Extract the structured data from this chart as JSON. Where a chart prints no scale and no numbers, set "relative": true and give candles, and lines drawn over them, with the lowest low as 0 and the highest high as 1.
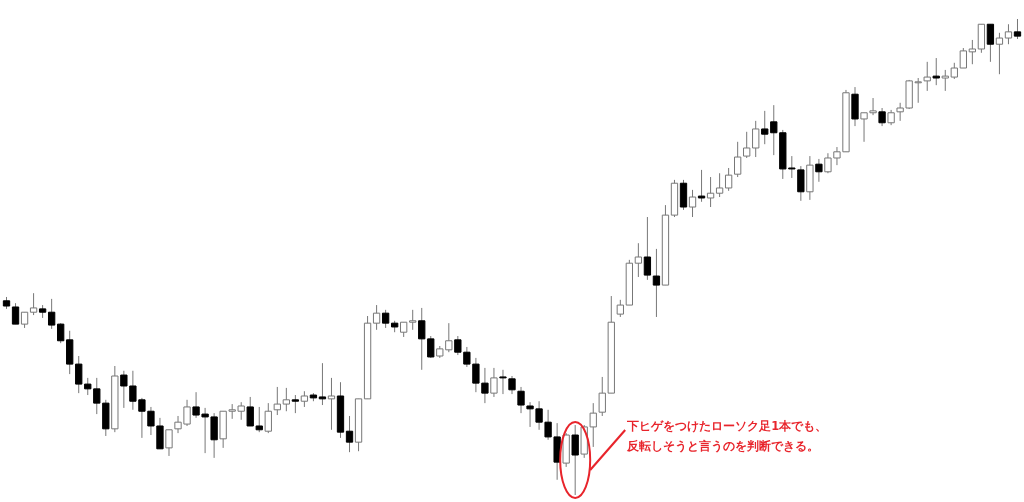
{
  "chart_data": {
    "type": "candlestick",
    "relative": true,
    "categories": [
      null,
      null,
      null,
      null,
      null,
      null,
      null,
      null,
      null,
      null,
      null,
      null,
      null,
      null,
      null,
      null,
      null,
      null,
      null,
      null,
      null,
      null,
      null,
      null,
      null,
      null,
      null,
      null,
      null,
      null,
      null,
      null,
      null,
      null,
      null,
      null,
      null,
      null,
      null,
      null,
      null,
      null,
      null,
      null,
      null,
      null,
      null,
      null,
      null,
      null,
      null,
      null,
      null,
      null,
      null,
      null,
      null,
      null,
      null,
      null,
      null,
      null,
      null,
      null,
      null,
      null,
      null,
      null,
      null,
      null,
      null,
      null,
      null,
      null,
      null,
      null,
      null,
      null,
      null,
      null,
      null,
      null,
      null,
      null,
      null,
      null,
      null,
      null,
      null,
      null,
      null,
      null,
      null,
      null,
      null,
      null,
      null,
      null,
      null,
      null,
      null,
      null,
      null,
      null,
      null,
      null,
      null,
      null,
      null,
      null,
      null,
      null,
      null
    ],
    "ohlc": [
      [
        0.408,
        0.416,
        0.391,
        0.397
      ],
      [
        0.395,
        0.403,
        0.359,
        0.359
      ],
      [
        0.359,
        0.384,
        0.351,
        0.384
      ],
      [
        0.384,
        0.424,
        0.378,
        0.393
      ],
      [
        0.391,
        0.399,
        0.372,
        0.384
      ],
      [
        0.384,
        0.412,
        0.349,
        0.357
      ],
      [
        0.359,
        0.361,
        0.319,
        0.324
      ],
      [
        0.326,
        0.345,
        0.254,
        0.275
      ],
      [
        0.275,
        0.292,
        0.214,
        0.233
      ],
      [
        0.233,
        0.246,
        0.21,
        0.223
      ],
      [
        0.223,
        0.246,
        0.17,
        0.193
      ],
      [
        0.193,
        0.2,
        0.124,
        0.139
      ],
      [
        0.139,
        0.271,
        0.132,
        0.25
      ],
      [
        0.252,
        0.261,
        0.183,
        0.229
      ],
      [
        0.229,
        0.261,
        0.179,
        0.197
      ],
      [
        0.2,
        0.204,
        0.12,
        0.176
      ],
      [
        0.176,
        0.185,
        0.126,
        0.145
      ],
      [
        0.145,
        0.162,
        0.097,
        0.097
      ],
      [
        0.099,
        0.137,
        0.082,
        0.137
      ],
      [
        0.139,
        0.166,
        0.13,
        0.153
      ],
      [
        0.149,
        0.2,
        0.145,
        0.185
      ],
      [
        0.185,
        0.216,
        0.162,
        0.168
      ],
      [
        0.17,
        0.183,
        0.088,
        0.164
      ],
      [
        0.164,
        0.172,
        0.078,
        0.116
      ],
      [
        0.118,
        0.176,
        0.099,
        0.176
      ],
      [
        0.176,
        0.191,
        0.16,
        0.179
      ],
      [
        0.176,
        0.195,
        0.158,
        0.187
      ],
      [
        0.185,
        0.206,
        0.145,
        0.145
      ],
      [
        0.145,
        0.185,
        0.132,
        0.137
      ],
      [
        0.134,
        0.193,
        0.13,
        0.176
      ],
      [
        0.179,
        0.227,
        0.168,
        0.191
      ],
      [
        0.191,
        0.225,
        0.176,
        0.2
      ],
      [
        0.2,
        0.21,
        0.172,
        0.197
      ],
      [
        0.197,
        0.218,
        0.185,
        0.208
      ],
      [
        0.21,
        0.214,
        0.197,
        0.204
      ],
      [
        0.206,
        0.277,
        0.189,
        0.202
      ],
      [
        0.202,
        0.246,
        0.137,
        0.208
      ],
      [
        0.208,
        0.237,
        0.12,
        0.132
      ],
      [
        0.134,
        0.166,
        0.09,
        0.111
      ],
      [
        0.111,
        0.202,
        0.092,
        0.202
      ],
      [
        0.202,
        0.376,
        0.202,
        0.361
      ],
      [
        0.361,
        0.399,
        0.347,
        0.382
      ],
      [
        0.382,
        0.389,
        0.351,
        0.361
      ],
      [
        0.361,
        0.366,
        0.342,
        0.353
      ],
      [
        0.342,
        0.363,
        0.332,
        0.363
      ],
      [
        0.363,
        0.389,
        0.347,
        0.366
      ],
      [
        0.366,
        0.393,
        0.263,
        0.328
      ],
      [
        0.328,
        0.334,
        0.288,
        0.29
      ],
      [
        0.292,
        0.313,
        0.288,
        0.307
      ],
      [
        0.305,
        0.361,
        0.3,
        0.324
      ],
      [
        0.326,
        0.334,
        0.294,
        0.3
      ],
      [
        0.3,
        0.311,
        0.269,
        0.275
      ],
      [
        0.275,
        0.288,
        0.216,
        0.235
      ],
      [
        0.235,
        0.267,
        0.193,
        0.214
      ],
      [
        0.214,
        0.267,
        0.206,
        0.246
      ],
      [
        0.248,
        0.263,
        0.212,
        0.246
      ],
      [
        0.244,
        0.25,
        0.212,
        0.221
      ],
      [
        0.218,
        0.227,
        0.172,
        0.189
      ],
      [
        0.187,
        0.195,
        0.143,
        0.181
      ],
      [
        0.181,
        0.197,
        0.137,
        0.153
      ],
      [
        0.153,
        0.179,
        0.116,
        0.122
      ],
      [
        0.122,
        0.151,
        0.032,
        0.069
      ],
      [
        0.067,
        0.13,
        0.059,
        0.126
      ],
      [
        0.126,
        0.147,
        0,
        0.084
      ],
      [
        0.086,
        0.147,
        0.078,
        0.143
      ],
      [
        0.143,
        0.193,
        0.101,
        0.172
      ],
      [
        0.174,
        0.248,
        0.166,
        0.214
      ],
      [
        0.214,
        0.418,
        0.214,
        0.363
      ],
      [
        0.38,
        0.41,
        0.374,
        0.399
      ],
      [
        0.399,
        0.494,
        0.399,
        0.487
      ],
      [
        0.487,
        0.529,
        0.458,
        0.5
      ],
      [
        0.5,
        0.584,
        0.452,
        0.462
      ],
      [
        0.46,
        0.517,
        0.374,
        0.441
      ],
      [
        0.441,
        0.609,
        0.441,
        0.588
      ],
      [
        0.588,
        0.662,
        0.584,
        0.655
      ],
      [
        0.655,
        0.662,
        0.599,
        0.605
      ],
      [
        0.605,
        0.641,
        0.584,
        0.626
      ],
      [
        0.628,
        0.683,
        0.616,
        0.624
      ],
      [
        0.624,
        0.668,
        0.605,
        0.634
      ],
      [
        0.634,
        0.676,
        0.626,
        0.645
      ],
      [
        0.645,
        0.687,
        0.639,
        0.672
      ],
      [
        0.674,
        0.742,
        0.668,
        0.71
      ],
      [
        0.712,
        0.763,
        0.708,
        0.729
      ],
      [
        0.729,
        0.786,
        0.71,
        0.769
      ],
      [
        0.769,
        0.807,
        0.737,
        0.758
      ],
      [
        0.784,
        0.819,
        0.714,
        0.761
      ],
      [
        0.761,
        0.767,
        0.664,
        0.685
      ],
      [
        0.687,
        0.712,
        0.666,
        0.685
      ],
      [
        0.683,
        0.691,
        0.618,
        0.637
      ],
      [
        0.637,
        0.712,
        0.62,
        0.693
      ],
      [
        0.695,
        0.706,
        0.658,
        0.679
      ],
      [
        0.679,
        0.718,
        0.676,
        0.708
      ],
      [
        0.708,
        0.731,
        0.693,
        0.721
      ],
      [
        0.721,
        0.851,
        0.721,
        0.845
      ],
      [
        0.842,
        0.857,
        0.775,
        0.79
      ],
      [
        0.79,
        0.803,
        0.742,
        0.803
      ],
      [
        0.803,
        0.834,
        0.798,
        0.807
      ],
      [
        0.805,
        0.813,
        0.775,
        0.782
      ],
      [
        0.782,
        0.809,
        0.777,
        0.803
      ],
      [
        0.805,
        0.824,
        0.786,
        0.813
      ],
      [
        0.813,
        0.872,
        0.811,
        0.87
      ],
      [
        0.866,
        0.876,
        0.824,
        0.868
      ],
      [
        0.87,
        0.91,
        0.849,
        0.878
      ],
      [
        0.88,
        0.918,
        0.861,
        0.876
      ],
      [
        0.876,
        0.893,
        0.849,
        0.88
      ],
      [
        0.878,
        0.908,
        0.874,
        0.897
      ],
      [
        0.897,
        0.939,
        0.897,
        0.933
      ],
      [
        0.931,
        0.956,
        0.905,
        0.937
      ],
      [
        0.937,
        0.989,
        0.929,
        0.989
      ],
      [
        0.989,
        0.989,
        0.91,
        0.947
      ],
      [
        0.947,
        0.971,
        0.884,
        0.96
      ],
      [
        0.96,
        0.989,
        0.947,
        0.973
      ],
      [
        0.973,
        1,
        0.958,
        0.964
      ]
    ],
    "annotations": [
      "下ヒゲをつけたローソク足1本でも、",
      "反転しそうと言うのを判断できる。"
    ]
  }
}
